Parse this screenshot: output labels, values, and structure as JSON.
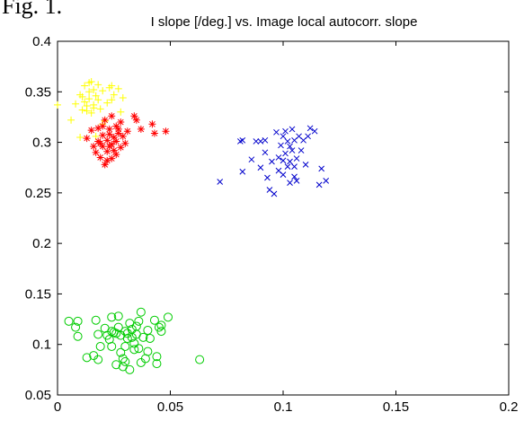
{
  "figure_label": "Fig. 1.",
  "chart_data": {
    "type": "scatter",
    "title": "I slope [/deg.] vs. Image local autocorr. slope",
    "xlabel": "",
    "ylabel": "",
    "xlim": [
      0,
      0.2
    ],
    "ylim": [
      0.05,
      0.4
    ],
    "x_ticks": [
      0,
      0.05,
      0.1,
      0.15,
      0.2
    ],
    "x_tick_labels": [
      "0",
      "0.05",
      "0.1",
      "0.15",
      "0.2"
    ],
    "y_ticks": [
      0.05,
      0.1,
      0.15,
      0.2,
      0.25,
      0.3,
      0.35,
      0.4
    ],
    "y_tick_labels": [
      "0.05",
      "0.1",
      "0.15",
      "0.2",
      "0.25",
      "0.3",
      "0.35",
      "0.4"
    ],
    "grid": false,
    "legend": "none",
    "series": [
      {
        "marker": "plus",
        "color": "#ffff00",
        "points": [
          [
            0.0,
            0.337
          ],
          [
            0.006,
            0.322
          ],
          [
            0.008,
            0.338
          ],
          [
            0.01,
            0.347
          ],
          [
            0.011,
            0.332
          ],
          [
            0.012,
            0.356
          ],
          [
            0.013,
            0.336
          ],
          [
            0.014,
            0.359
          ],
          [
            0.014,
            0.343
          ],
          [
            0.015,
            0.36
          ],
          [
            0.016,
            0.352
          ],
          [
            0.016,
            0.337
          ],
          [
            0.017,
            0.346
          ],
          [
            0.018,
            0.357
          ],
          [
            0.019,
            0.333
          ],
          [
            0.02,
            0.351
          ],
          [
            0.021,
            0.321
          ],
          [
            0.022,
            0.339
          ],
          [
            0.023,
            0.354
          ],
          [
            0.024,
            0.356
          ],
          [
            0.025,
            0.347
          ],
          [
            0.027,
            0.353
          ],
          [
            0.028,
            0.33
          ],
          [
            0.029,
            0.344
          ],
          [
            0.013,
            0.331
          ],
          [
            0.015,
            0.329
          ],
          [
            0.018,
            0.342
          ],
          [
            0.012,
            0.34
          ],
          [
            0.01,
            0.305
          ],
          [
            0.017,
            0.306
          ],
          [
            0.02,
            0.318
          ],
          [
            0.024,
            0.342
          ],
          [
            0.014,
            0.35
          ],
          [
            0.011,
            0.345
          ],
          [
            0.016,
            0.334
          ]
        ]
      },
      {
        "marker": "asterisk",
        "color": "#ff0000",
        "points": [
          [
            0.013,
            0.304
          ],
          [
            0.015,
            0.312
          ],
          [
            0.016,
            0.296
          ],
          [
            0.017,
            0.29
          ],
          [
            0.018,
            0.301
          ],
          [
            0.018,
            0.314
          ],
          [
            0.019,
            0.285
          ],
          [
            0.02,
            0.307
          ],
          [
            0.02,
            0.296
          ],
          [
            0.021,
            0.322
          ],
          [
            0.021,
            0.278
          ],
          [
            0.022,
            0.291
          ],
          [
            0.022,
            0.302
          ],
          [
            0.023,
            0.313
          ],
          [
            0.023,
            0.296
          ],
          [
            0.024,
            0.326
          ],
          [
            0.024,
            0.284
          ],
          [
            0.025,
            0.305
          ],
          [
            0.025,
            0.292
          ],
          [
            0.026,
            0.316
          ],
          [
            0.026,
            0.301
          ],
          [
            0.027,
            0.309
          ],
          [
            0.028,
            0.295
          ],
          [
            0.028,
            0.32
          ],
          [
            0.029,
            0.306
          ],
          [
            0.03,
            0.299
          ],
          [
            0.031,
            0.311
          ],
          [
            0.034,
            0.326
          ],
          [
            0.035,
            0.322
          ],
          [
            0.037,
            0.313
          ],
          [
            0.042,
            0.318
          ],
          [
            0.043,
            0.309
          ],
          [
            0.048,
            0.311
          ],
          [
            0.02,
            0.316
          ],
          [
            0.023,
            0.308
          ],
          [
            0.019,
            0.299
          ],
          [
            0.022,
            0.282
          ],
          [
            0.026,
            0.288
          ],
          [
            0.024,
            0.298
          ],
          [
            0.027,
            0.313
          ]
        ]
      },
      {
        "marker": "x",
        "color": "#0000cc",
        "points": [
          [
            0.072,
            0.261
          ],
          [
            0.081,
            0.301
          ],
          [
            0.082,
            0.302
          ],
          [
            0.082,
            0.271
          ],
          [
            0.086,
            0.283
          ],
          [
            0.088,
            0.301
          ],
          [
            0.09,
            0.301
          ],
          [
            0.09,
            0.275
          ],
          [
            0.092,
            0.29
          ],
          [
            0.092,
            0.302
          ],
          [
            0.093,
            0.265
          ],
          [
            0.094,
            0.253
          ],
          [
            0.095,
            0.281
          ],
          [
            0.096,
            0.249
          ],
          [
            0.097,
            0.31
          ],
          [
            0.098,
            0.272
          ],
          [
            0.099,
            0.297
          ],
          [
            0.1,
            0.282
          ],
          [
            0.1,
            0.268
          ],
          [
            0.101,
            0.311
          ],
          [
            0.101,
            0.289
          ],
          [
            0.102,
            0.276
          ],
          [
            0.102,
            0.301
          ],
          [
            0.103,
            0.296
          ],
          [
            0.103,
            0.26
          ],
          [
            0.104,
            0.292
          ],
          [
            0.104,
            0.313
          ],
          [
            0.105,
            0.276
          ],
          [
            0.105,
            0.302
          ],
          [
            0.106,
            0.284
          ],
          [
            0.106,
            0.262
          ],
          [
            0.107,
            0.306
          ],
          [
            0.108,
            0.292
          ],
          [
            0.109,
            0.302
          ],
          [
            0.11,
            0.278
          ],
          [
            0.111,
            0.306
          ],
          [
            0.112,
            0.314
          ],
          [
            0.114,
            0.311
          ],
          [
            0.116,
            0.258
          ],
          [
            0.117,
            0.274
          ],
          [
            0.119,
            0.262
          ],
          [
            0.098,
            0.285
          ],
          [
            0.1,
            0.306
          ],
          [
            0.103,
            0.281
          ],
          [
            0.105,
            0.266
          ]
        ]
      },
      {
        "marker": "circle",
        "color": "#00cc00",
        "points": [
          [
            0.005,
            0.123
          ],
          [
            0.008,
            0.117
          ],
          [
            0.009,
            0.123
          ],
          [
            0.009,
            0.108
          ],
          [
            0.013,
            0.087
          ],
          [
            0.016,
            0.089
          ],
          [
            0.017,
            0.124
          ],
          [
            0.018,
            0.11
          ],
          [
            0.018,
            0.085
          ],
          [
            0.019,
            0.098
          ],
          [
            0.021,
            0.116
          ],
          [
            0.022,
            0.109
          ],
          [
            0.023,
            0.105
          ],
          [
            0.024,
            0.113
          ],
          [
            0.024,
            0.098
          ],
          [
            0.025,
            0.112
          ],
          [
            0.026,
            0.111
          ],
          [
            0.026,
            0.08
          ],
          [
            0.027,
            0.128
          ],
          [
            0.027,
            0.117
          ],
          [
            0.028,
            0.092
          ],
          [
            0.028,
            0.109
          ],
          [
            0.029,
            0.086
          ],
          [
            0.029,
            0.078
          ],
          [
            0.03,
            0.113
          ],
          [
            0.03,
            0.083
          ],
          [
            0.031,
            0.111
          ],
          [
            0.031,
            0.106
          ],
          [
            0.032,
            0.121
          ],
          [
            0.032,
            0.075
          ],
          [
            0.033,
            0.115
          ],
          [
            0.034,
            0.101
          ],
          [
            0.034,
            0.095
          ],
          [
            0.035,
            0.118
          ],
          [
            0.035,
            0.11
          ],
          [
            0.036,
            0.123
          ],
          [
            0.036,
            0.096
          ],
          [
            0.037,
            0.132
          ],
          [
            0.037,
            0.082
          ],
          [
            0.038,
            0.107
          ],
          [
            0.039,
            0.086
          ],
          [
            0.04,
            0.114
          ],
          [
            0.04,
            0.093
          ],
          [
            0.041,
            0.106
          ],
          [
            0.043,
            0.124
          ],
          [
            0.044,
            0.081
          ],
          [
            0.044,
            0.088
          ],
          [
            0.045,
            0.117
          ],
          [
            0.046,
            0.119
          ],
          [
            0.046,
            0.113
          ],
          [
            0.049,
            0.127
          ],
          [
            0.063,
            0.085
          ],
          [
            0.033,
            0.107
          ],
          [
            0.03,
            0.098
          ],
          [
            0.024,
            0.127
          ]
        ]
      }
    ]
  }
}
